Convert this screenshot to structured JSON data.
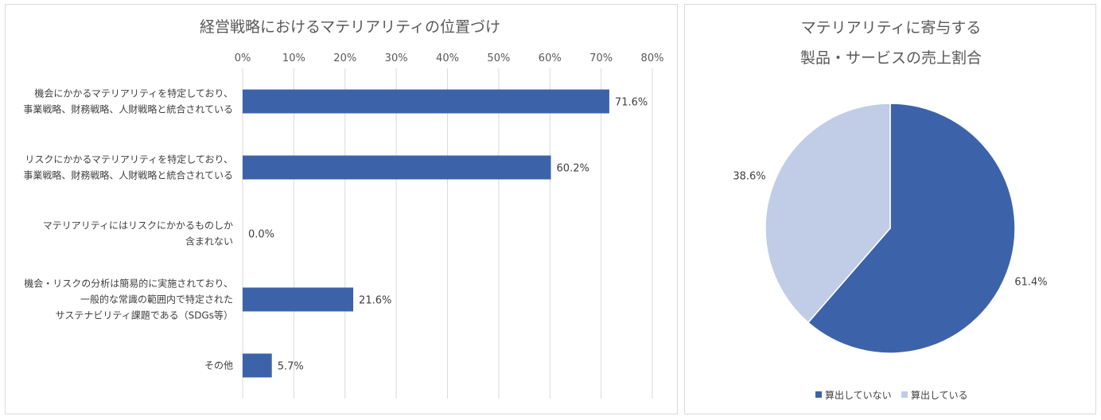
{
  "chart_data": [
    {
      "type": "bar",
      "orientation": "horizontal",
      "title": "経営戦略におけるマテリアリティの位置づけ",
      "categories": [
        [
          "機会にかかるマテリアリティを特定しており、",
          "事業戦略、財務戦略、人財戦略と統合されている"
        ],
        [
          "リスクにかかるマテリアリティを特定しており、",
          "事業戦略、財務戦略、人財戦略と統合されている"
        ],
        [
          "マテリアリティにはリスクにかかるものしか",
          "含まれない"
        ],
        [
          "機会・リスクの分析は簡易的に実施されており、",
          "一般的な常識の範囲内で特定された",
          "サステナビリティ課題である（SDGs等）"
        ],
        [
          "その他"
        ]
      ],
      "values": [
        71.6,
        60.2,
        0.0,
        21.6,
        5.7
      ],
      "data_labels": [
        "71.6%",
        "60.2%",
        "0.0%",
        "21.6%",
        "5.7%"
      ],
      "xlim": [
        0,
        80
      ],
      "ticks": [
        "0%",
        "10%",
        "20%",
        "30%",
        "40%",
        "50%",
        "60%",
        "70%",
        "80%"
      ],
      "tick_values": [
        0,
        10,
        20,
        30,
        40,
        50,
        60,
        70,
        80
      ],
      "axis_position": "top",
      "grid": true,
      "bar_color": "#3c63aa"
    },
    {
      "type": "pie",
      "title": [
        "マテリアリティに寄与する",
        "製品・サービスの売上割合"
      ],
      "slices": [
        {
          "name": "算出していない",
          "value": 61.4,
          "label": "61.4%",
          "color": "#3c63aa"
        },
        {
          "name": "算出している",
          "value": 38.6,
          "label": "38.6%",
          "color": "#c1cde6"
        }
      ],
      "start_angle": "12 o'clock",
      "direction": "clockwise",
      "legend": "bottom"
    }
  ]
}
